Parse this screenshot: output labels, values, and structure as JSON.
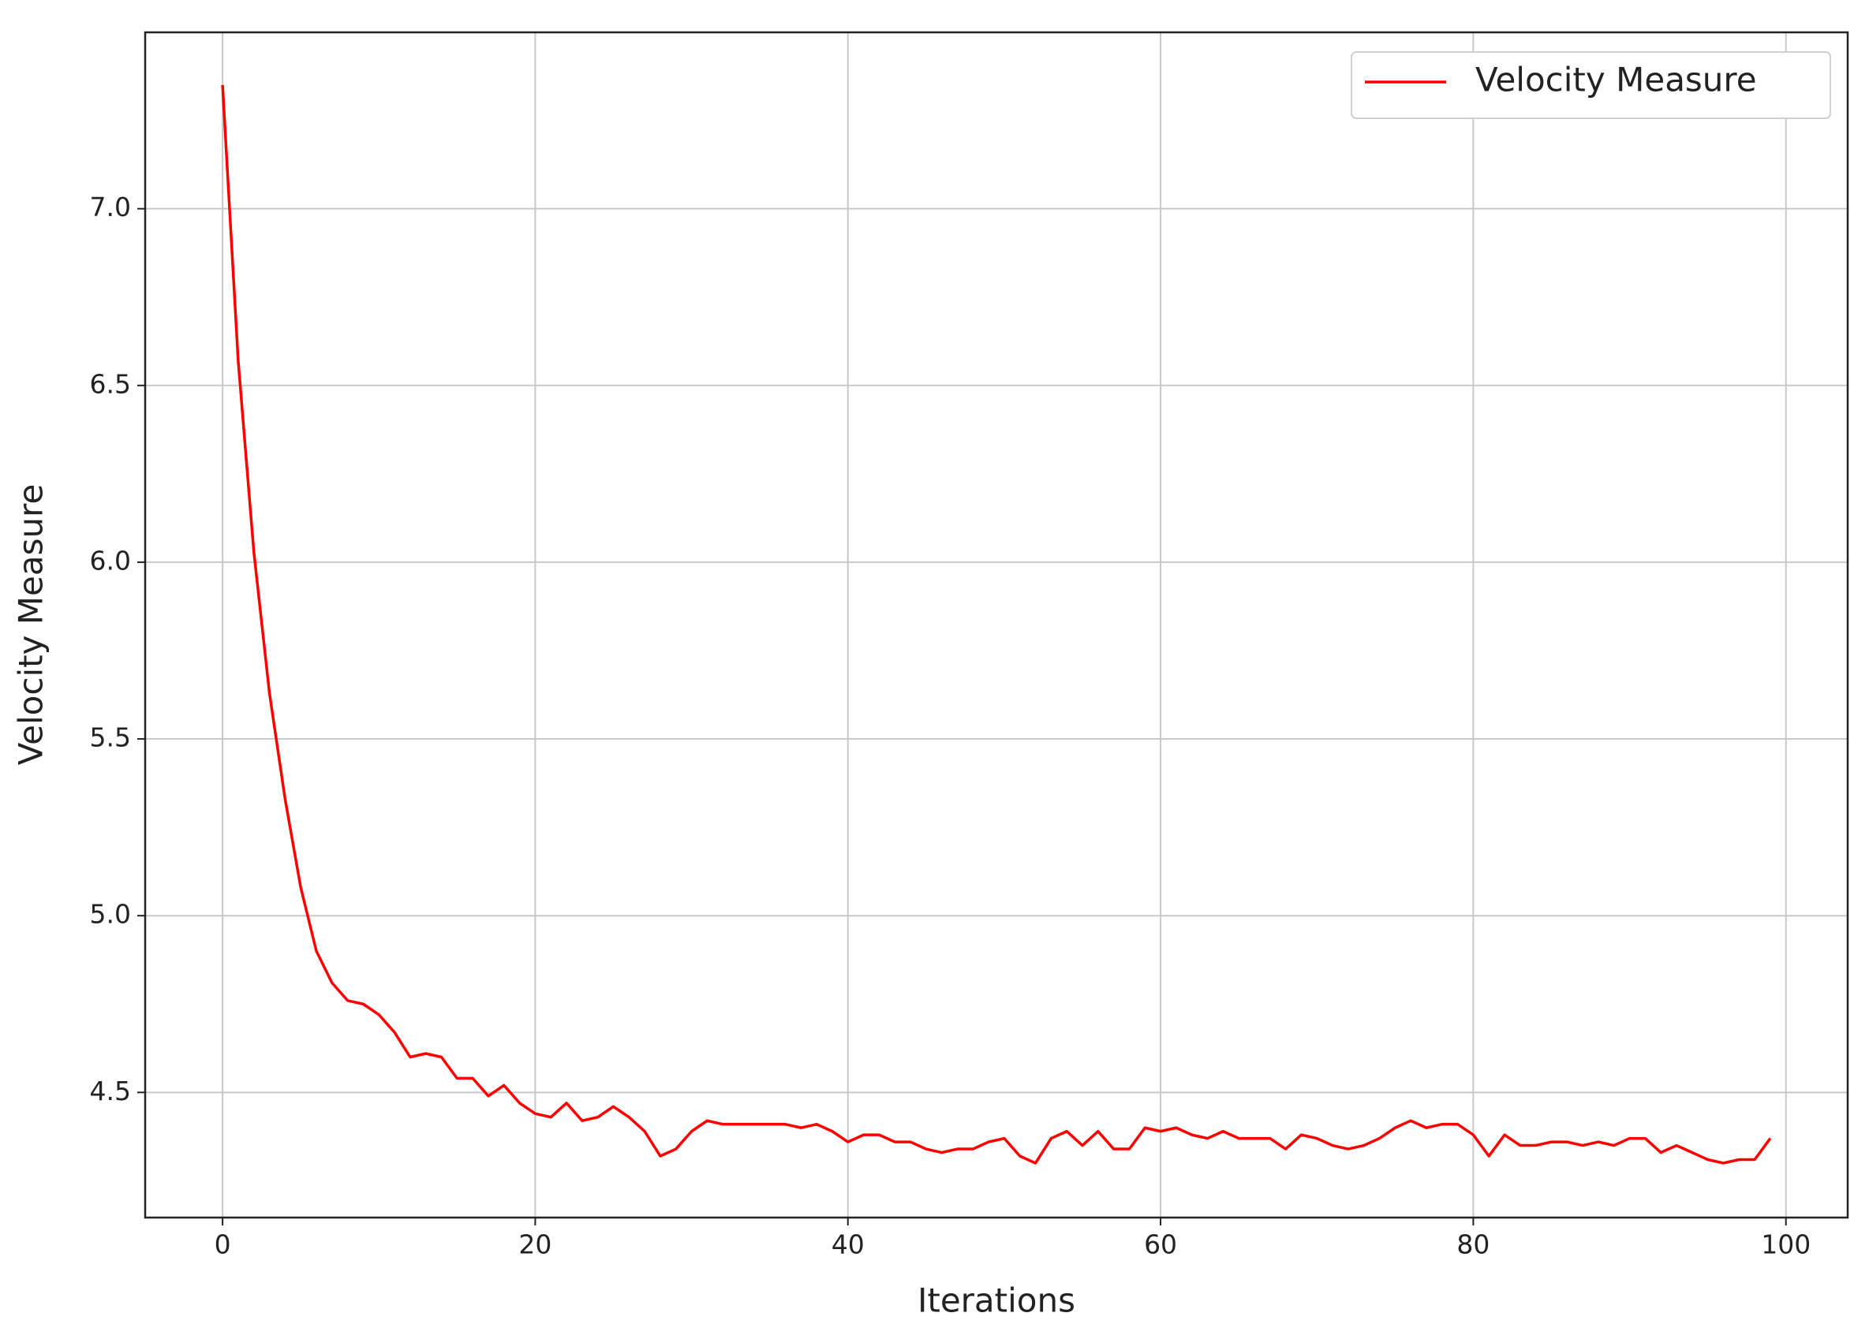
{
  "chart_data": {
    "type": "line",
    "x_label": "Iterations",
    "y_label": "Velocity Measure",
    "x": [
      0,
      1,
      2,
      3,
      4,
      5,
      6,
      7,
      8,
      9,
      10,
      11,
      12,
      13,
      14,
      15,
      16,
      17,
      18,
      19,
      20,
      21,
      22,
      23,
      24,
      25,
      26,
      27,
      28,
      29,
      30,
      31,
      32,
      33,
      34,
      35,
      36,
      37,
      38,
      39,
      40,
      41,
      42,
      43,
      44,
      45,
      46,
      47,
      48,
      49,
      50,
      51,
      52,
      53,
      54,
      55,
      56,
      57,
      58,
      59,
      60,
      61,
      62,
      63,
      64,
      65,
      66,
      67,
      68,
      69,
      70,
      71,
      72,
      73,
      74,
      75,
      76,
      77,
      78,
      79,
      80,
      81,
      82,
      83,
      84,
      85,
      86,
      87,
      88,
      89,
      90,
      91,
      92,
      93,
      94,
      95,
      96,
      97,
      98,
      99
    ],
    "series": [
      {
        "name": "Velocity Measure",
        "color": "#ff0000",
        "values": [
          7.35,
          6.57,
          6.03,
          5.63,
          5.33,
          5.08,
          4.9,
          4.81,
          4.76,
          4.75,
          4.72,
          4.67,
          4.6,
          4.61,
          4.6,
          4.54,
          4.54,
          4.49,
          4.52,
          4.47,
          4.44,
          4.43,
          4.47,
          4.42,
          4.43,
          4.46,
          4.43,
          4.39,
          4.32,
          4.34,
          4.39,
          4.42,
          4.41,
          4.41,
          4.41,
          4.41,
          4.41,
          4.4,
          4.41,
          4.39,
          4.36,
          4.38,
          4.38,
          4.36,
          4.36,
          4.34,
          4.33,
          4.34,
          4.34,
          4.36,
          4.37,
          4.32,
          4.3,
          4.37,
          4.39,
          4.35,
          4.39,
          4.34,
          4.34,
          4.4,
          4.39,
          4.4,
          4.38,
          4.37,
          4.39,
          4.37,
          4.37,
          4.37,
          4.34,
          4.38,
          4.37,
          4.35,
          4.34,
          4.35,
          4.37,
          4.4,
          4.42,
          4.4,
          4.41,
          4.41,
          4.38,
          4.32,
          4.38,
          4.35,
          4.35,
          4.36,
          4.36,
          4.35,
          4.36,
          4.35,
          4.37,
          4.37,
          4.33,
          4.35,
          4.33,
          4.31,
          4.3,
          4.31,
          4.31,
          4.37
        ]
      }
    ],
    "xlim": [
      -4.95,
      103.95
    ],
    "xticks": [
      0,
      20,
      40,
      60,
      80,
      100
    ],
    "ylim": [
      4.146,
      7.499
    ],
    "yticks": [
      4.5,
      {
        "value": 5,
        "label": "5.0"
      },
      5.5,
      {
        "value": 6,
        "label": "6.0"
      },
      6.5,
      {
        "value": 7,
        "label": "7.0"
      }
    ],
    "grid": true,
    "legend": "upper right"
  }
}
